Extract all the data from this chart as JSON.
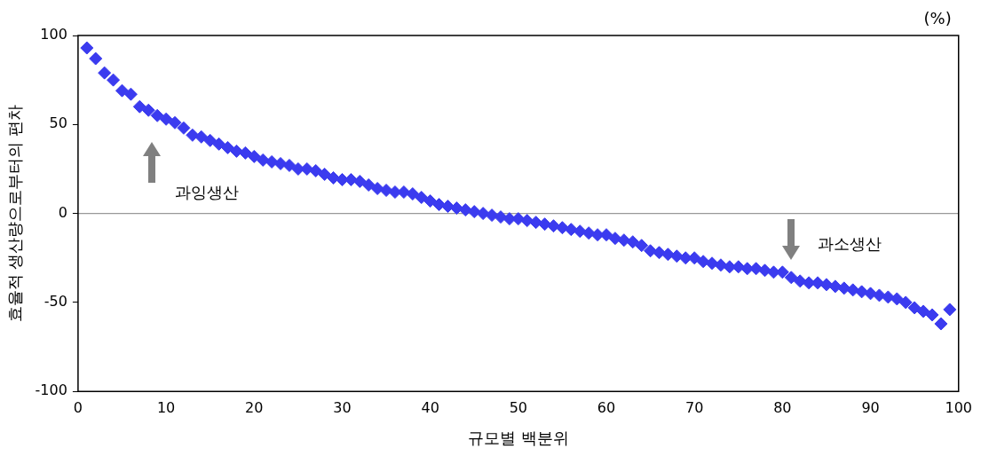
{
  "chart_data": {
    "type": "scatter",
    "xlabel": "규모별 백분위",
    "ylabel": "효율적 생산량으로부터의 편차",
    "x": [
      1,
      2,
      3,
      4,
      5,
      6,
      7,
      8,
      9,
      10,
      11,
      12,
      13,
      14,
      15,
      16,
      17,
      18,
      19,
      20,
      21,
      22,
      23,
      24,
      25,
      26,
      27,
      28,
      29,
      30,
      31,
      32,
      33,
      34,
      35,
      36,
      37,
      38,
      39,
      40,
      41,
      42,
      43,
      44,
      45,
      46,
      47,
      48,
      49,
      50,
      51,
      52,
      53,
      54,
      55,
      56,
      57,
      58,
      59,
      60,
      61,
      62,
      63,
      64,
      65,
      66,
      67,
      68,
      69,
      70,
      71,
      72,
      73,
      74,
      75,
      76,
      77,
      78,
      79,
      80,
      81,
      82,
      83,
      84,
      85,
      86,
      87,
      88,
      89,
      90,
      91,
      92,
      93,
      94,
      95,
      96,
      97,
      98,
      99
    ],
    "series": [
      {
        "color": "#3b3bef",
        "values": [
          93,
          87,
          79,
          75,
          69,
          67,
          60,
          58,
          55,
          53,
          51,
          48,
          44,
          43,
          41,
          39,
          37,
          35,
          34,
          32,
          30,
          29,
          28,
          27,
          25,
          25,
          24,
          22,
          20,
          19,
          19,
          18,
          16,
          14,
          13,
          12,
          12,
          11,
          9,
          7,
          5,
          4,
          3,
          2,
          1,
          0,
          -1,
          -2,
          -3,
          -3,
          -4,
          -5,
          -6,
          -7,
          -8,
          -9,
          -10,
          -11,
          -12,
          -12,
          -14,
          -15,
          -16,
          -18,
          -21,
          -22,
          -23,
          -24,
          -25,
          -25,
          -27,
          -28,
          -29,
          -30,
          -30,
          -31,
          -31,
          -32,
          -33,
          -33,
          -36,
          -38,
          -39,
          -39,
          -40,
          -41,
          -42,
          -43,
          -44,
          -45,
          -46,
          -47,
          -48,
          -50,
          -53,
          -55,
          -57,
          -62,
          -54
        ]
      }
    ],
    "xlim": [
      0,
      100
    ],
    "xticks": [
      0,
      10,
      20,
      30,
      40,
      50,
      60,
      70,
      80,
      90,
      100
    ],
    "ylim": [
      -100,
      100
    ],
    "yticks": [
      -100,
      -50,
      0,
      50,
      100
    ],
    "ref_lines": [
      {
        "axis": "y",
        "value": 0,
        "color": "#999999"
      }
    ],
    "annotations": [
      "(%)",
      "과잉생산",
      "과소생산"
    ],
    "marker": "diamond",
    "grid": false,
    "legend": false
  }
}
